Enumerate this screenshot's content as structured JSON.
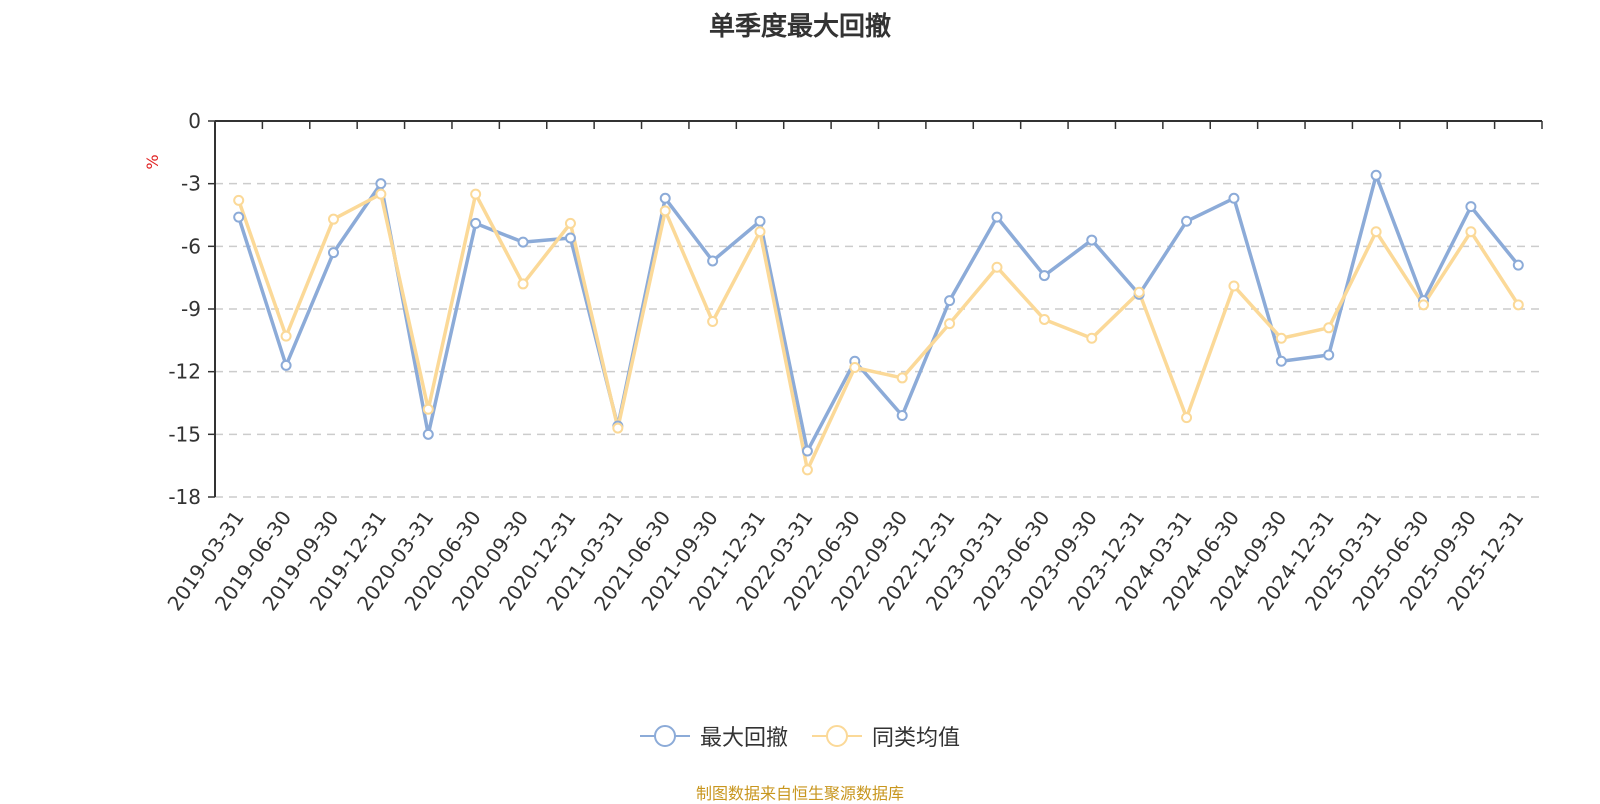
{
  "chart_data": {
    "type": "line",
    "title": "单季度最大回撤",
    "ylabel": "%",
    "ylim": [
      -18,
      0
    ],
    "yticks": [
      0,
      -3,
      -6,
      -9,
      -12,
      -15,
      -18
    ],
    "grid": true,
    "legend_position": "bottom",
    "x": [
      "2019-03-31",
      "2019-06-30",
      "2019-09-30",
      "2019-12-31",
      "2020-03-31",
      "2020-06-30",
      "2020-09-30",
      "2020-12-31",
      "2021-03-31",
      "2021-06-30",
      "2021-09-30",
      "2021-12-31",
      "2022-03-31",
      "2022-06-30",
      "2022-09-30",
      "2022-12-31",
      "2023-03-31",
      "2023-06-30",
      "2023-09-30",
      "2023-12-31",
      "2024-03-31",
      "2024-06-30",
      "2024-09-30",
      "2024-12-31",
      "2025-03-31",
      "2025-06-30",
      "2025-09-30",
      "2025-12-31"
    ],
    "series": [
      {
        "name": "最大回撤",
        "color": "#8cabd8",
        "values": [
          -4.6,
          -11.7,
          -6.3,
          -3.0,
          -15.0,
          -4.9,
          -5.8,
          -5.6,
          -14.6,
          -3.7,
          -6.7,
          -4.8,
          -15.8,
          -11.5,
          -14.1,
          -8.6,
          -4.6,
          -7.4,
          -5.7,
          -8.3,
          -4.8,
          -3.7,
          -11.5,
          -11.2,
          -2.6,
          -8.6,
          -4.1,
          -6.9
        ]
      },
      {
        "name": "同类均值",
        "color": "#fbd998",
        "values": [
          -3.8,
          -10.3,
          -4.7,
          -3.5,
          -13.8,
          -3.5,
          -7.8,
          -4.9,
          -14.7,
          -4.3,
          -9.6,
          -5.3,
          -16.7,
          -11.8,
          -12.3,
          -9.7,
          -7.0,
          -9.5,
          -10.4,
          -8.2,
          -14.2,
          -7.9,
          -10.4,
          -9.9,
          -5.3,
          -8.8,
          -5.3,
          -8.8
        ]
      }
    ],
    "source_note": "制图数据来自恒生聚源数据库"
  }
}
